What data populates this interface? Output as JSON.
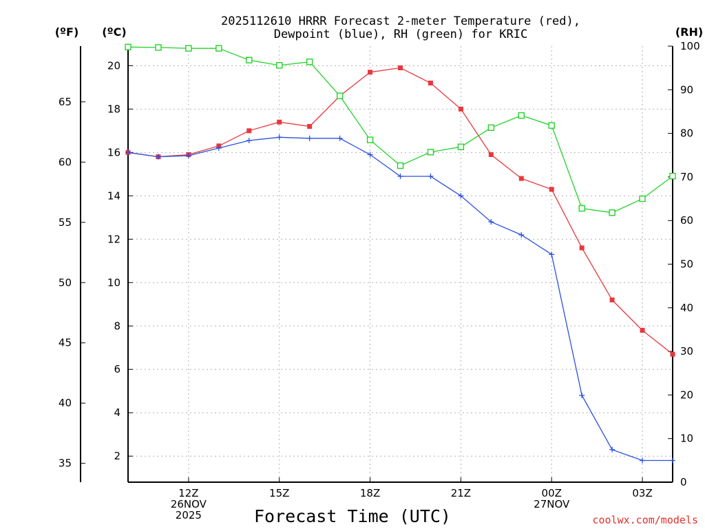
{
  "chart_data": {
    "type": "line",
    "title_line1": "2025112610 HRRR Forecast 2-meter Temperature (red),",
    "title_line2": "Dewpoint (blue), RH (green) for KRIC",
    "xlabel": "Forecast Time (UTC)",
    "credit": "coolwx.com/models",
    "units": {
      "fahrenheit": "(ºF)",
      "celsius": "(ºC)",
      "rh": "(RH)"
    },
    "x_hours": [
      10,
      11,
      12,
      13,
      14,
      15,
      16,
      17,
      18,
      19,
      20,
      21,
      22,
      23,
      24,
      25,
      26,
      27,
      28
    ],
    "xlim": [
      10,
      28
    ],
    "x_ticks": [
      {
        "hour": 12,
        "lines": [
          "12Z",
          "26NOV",
          "2025"
        ]
      },
      {
        "hour": 15,
        "lines": [
          "15Z"
        ]
      },
      {
        "hour": 18,
        "lines": [
          "18Z"
        ]
      },
      {
        "hour": 21,
        "lines": [
          "21Z"
        ]
      },
      {
        "hour": 24,
        "lines": [
          "00Z",
          "27NOV"
        ]
      },
      {
        "hour": 27,
        "lines": [
          "03Z"
        ]
      }
    ],
    "celsius_axis": {
      "ylim": [
        0.8,
        20.9
      ],
      "ticks": [
        2,
        4,
        6,
        8,
        10,
        12,
        14,
        16,
        18,
        20
      ]
    },
    "fahrenheit_axis": {
      "ticks": [
        35,
        40,
        45,
        50,
        55,
        60,
        65
      ]
    },
    "rh_axis": {
      "ylim": [
        0,
        100
      ],
      "ticks": [
        0,
        10,
        20,
        30,
        40,
        50,
        60,
        70,
        80,
        90,
        100
      ]
    },
    "series": [
      {
        "name": "Temperature",
        "unit": "C",
        "color": "#e8383d",
        "marker": "filled-square",
        "values": [
          16.0,
          15.8,
          15.9,
          16.3,
          17.0,
          17.4,
          17.2,
          18.6,
          19.7,
          19.9,
          19.2,
          18.0,
          15.9,
          14.8,
          14.3,
          11.6,
          9.2,
          7.8,
          6.7
        ]
      },
      {
        "name": "Dewpoint",
        "unit": "C",
        "color": "#2a4fe0",
        "marker": "plus",
        "values": [
          16.0,
          15.8,
          15.85,
          16.2,
          16.55,
          16.7,
          16.65,
          16.65,
          15.9,
          14.9,
          14.9,
          14.0,
          12.8,
          12.2,
          11.3,
          4.8,
          2.3,
          1.8,
          1.8
        ]
      },
      {
        "name": "Relative Humidity",
        "unit": "%",
        "color": "#22d22a",
        "marker": "open-square",
        "values": [
          99.8,
          99.7,
          99.5,
          99.5,
          96.8,
          95.6,
          96.4,
          88.6,
          78.5,
          72.6,
          75.7,
          76.9,
          81.3,
          84.1,
          81.8,
          62.8,
          61.8,
          65.0,
          70.2
        ]
      }
    ]
  }
}
